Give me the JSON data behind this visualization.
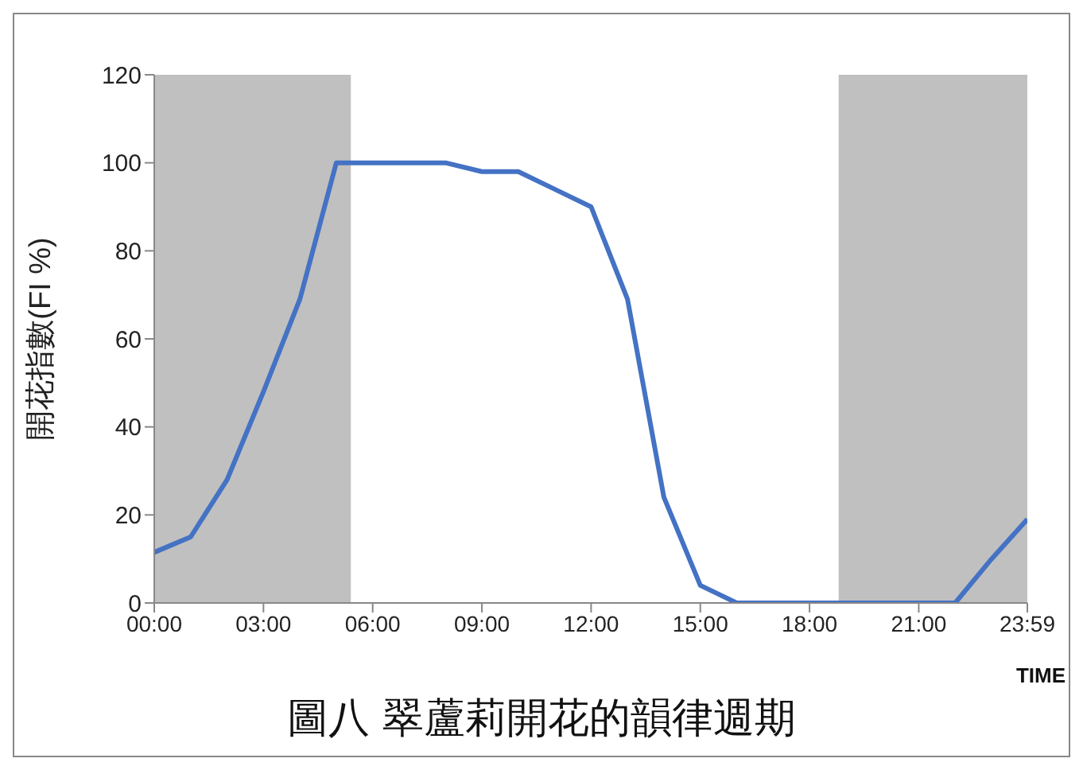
{
  "chart_data": {
    "type": "line",
    "title": "圖八 翠蘆莉開花的韻律週期",
    "xlabel": "TIME",
    "ylabel": "開花指數(FI %)",
    "x": [
      0,
      1,
      2,
      3,
      4,
      5,
      6,
      7,
      8,
      9,
      10,
      11,
      12,
      13,
      14,
      15,
      16,
      17,
      18,
      19,
      20,
      21,
      22,
      23,
      23.983
    ],
    "series": [
      {
        "color": "#4472c4",
        "values": [
          11.5,
          15,
          28,
          48,
          69,
          100,
          100,
          100,
          100,
          98,
          98,
          94,
          90,
          69,
          24,
          4,
          0,
          0,
          0,
          0,
          0,
          0,
          0,
          10,
          19
        ]
      }
    ],
    "xlim": [
      0,
      23.983
    ],
    "xticks": [
      {
        "value": 0,
        "label": "00:00"
      },
      {
        "value": 3,
        "label": "03:00"
      },
      {
        "value": 6,
        "label": "06:00"
      },
      {
        "value": 9,
        "label": "09:00"
      },
      {
        "value": 12,
        "label": "12:00"
      },
      {
        "value": 15,
        "label": "15:00"
      },
      {
        "value": 18,
        "label": "18:00"
      },
      {
        "value": 21,
        "label": "21:00"
      },
      {
        "value": 23.983,
        "label": "23:59"
      }
    ],
    "ylim": [
      0,
      120
    ],
    "yticks": [
      0,
      20,
      40,
      60,
      80,
      100,
      120
    ],
    "bands": [
      {
        "axis": "x",
        "from": 0,
        "to": 5.4,
        "color": "#c0c0c0"
      },
      {
        "axis": "x",
        "from": 18.8,
        "to": 23.983,
        "color": "#c0c0c0"
      }
    ],
    "grid": false,
    "legend": false,
    "marker": "none",
    "line_style": "solid"
  }
}
